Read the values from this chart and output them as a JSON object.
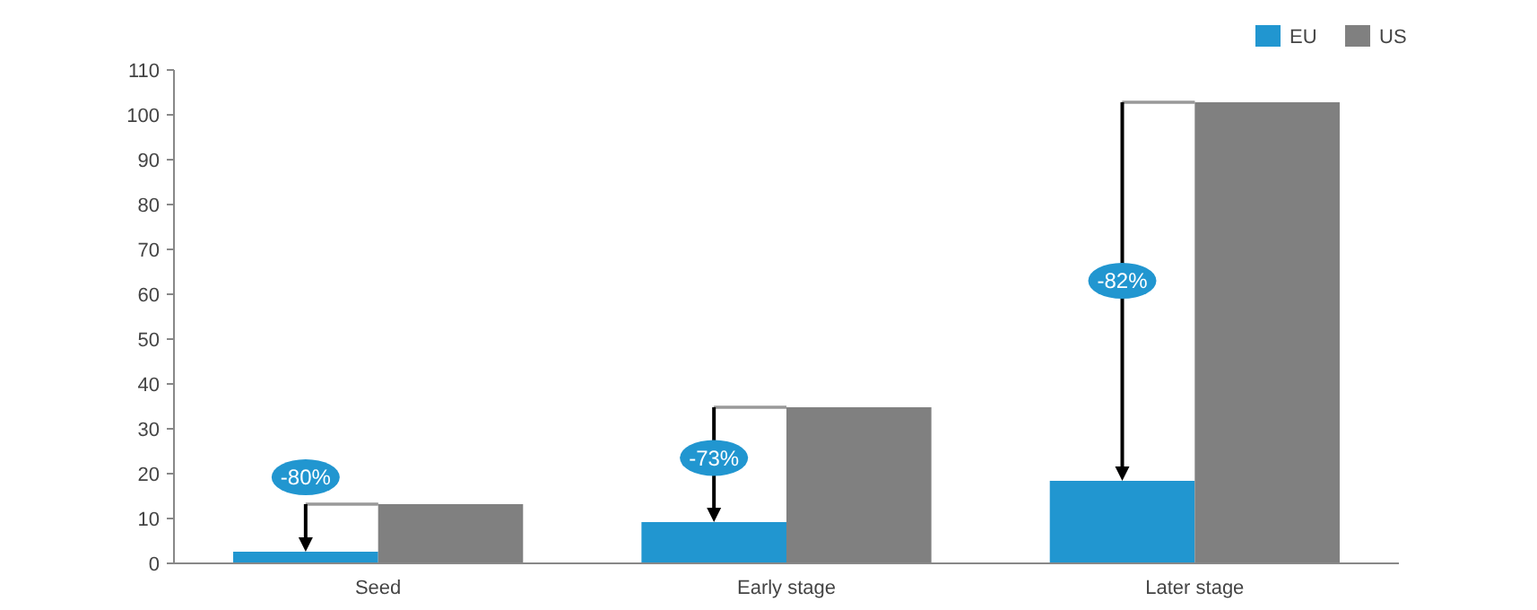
{
  "chart_data": {
    "type": "bar",
    "categories": [
      "Seed",
      "Early stage",
      "Later stage"
    ],
    "series": [
      {
        "name": "EU",
        "color": "#2196d0",
        "values": [
          2.6,
          9.2,
          18.4
        ]
      },
      {
        "name": "US",
        "color": "#808080",
        "values": [
          13.2,
          34.8,
          102.8
        ]
      }
    ],
    "ylim": [
      0,
      110
    ],
    "yticks": [
      0,
      10,
      20,
      30,
      40,
      50,
      60,
      70,
      80,
      90,
      100,
      110
    ],
    "grid": false,
    "legend": "top right",
    "annotations": [
      {
        "text": "-80%",
        "x": "Seed",
        "y": 13.2
      },
      {
        "text": "-73%",
        "x": "Early stage",
        "y": 23.5
      },
      {
        "text": "-82%",
        "x": "Later stage",
        "y": 63
      }
    ]
  }
}
